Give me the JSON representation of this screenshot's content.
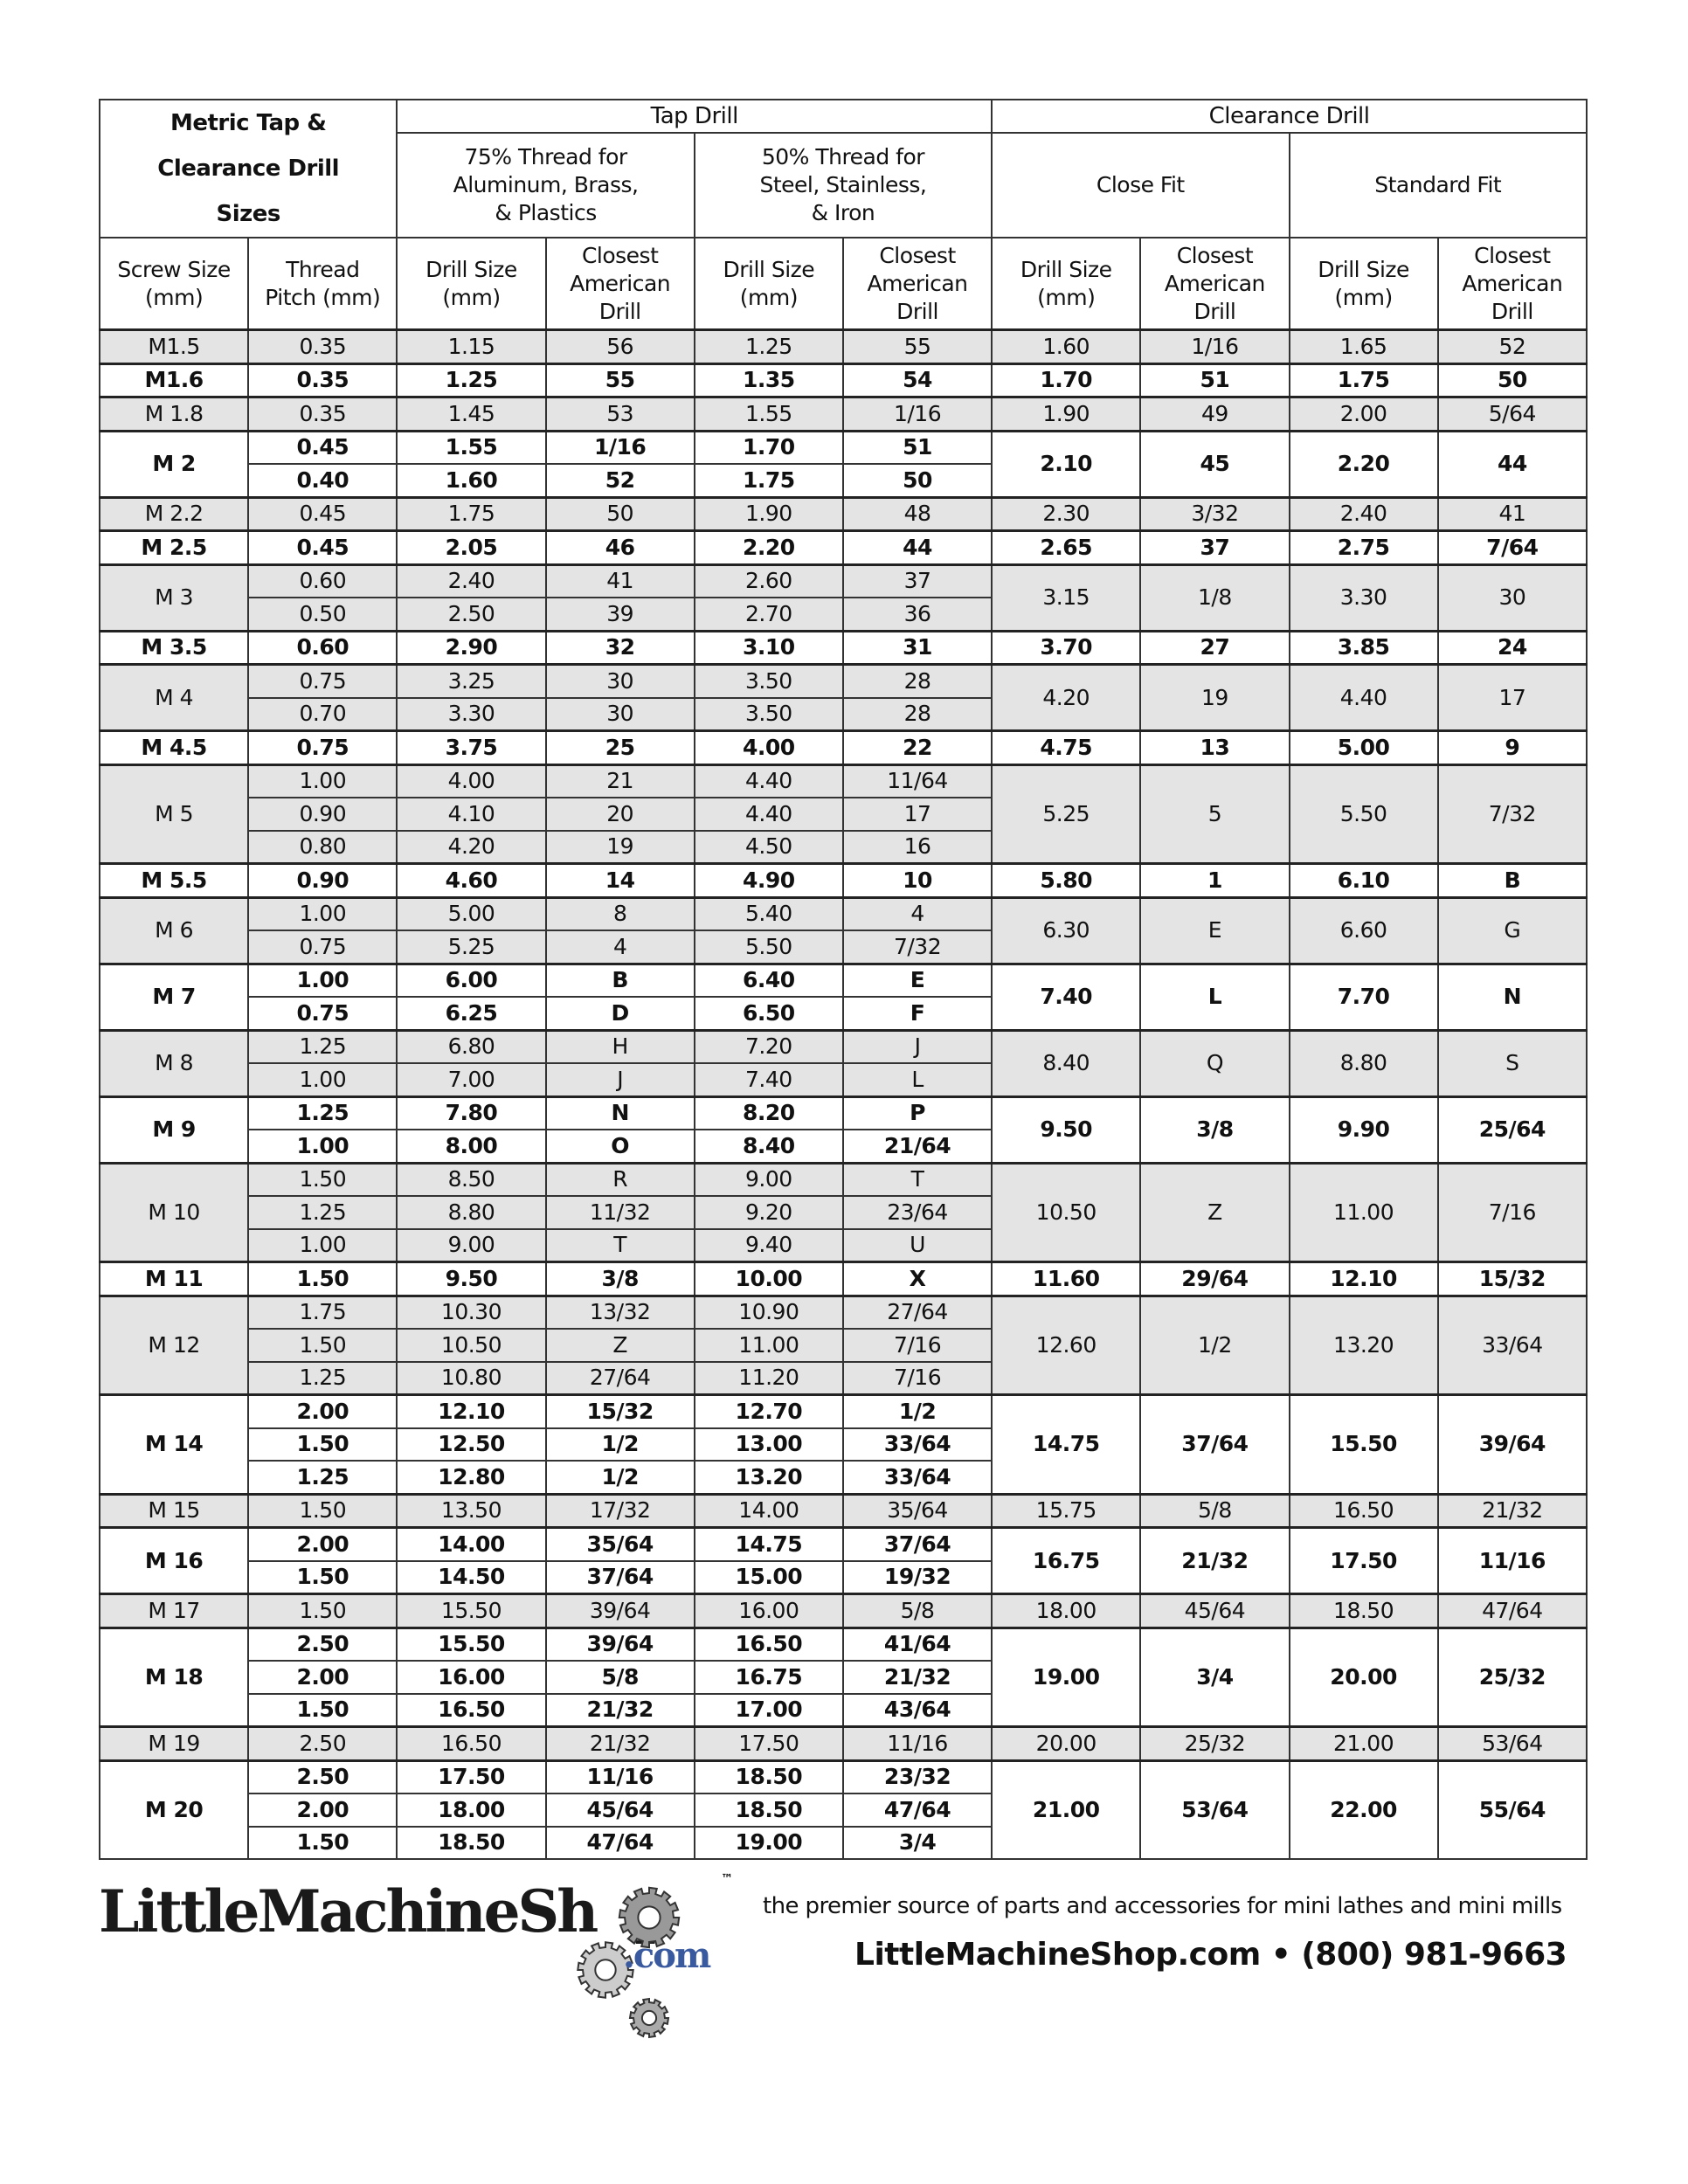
{
  "header": {
    "title_lines": [
      "Metric Tap &",
      "Clearance Drill",
      "Sizes"
    ],
    "tap_drill": "Tap Drill",
    "clearance_drill": "Clearance Drill",
    "thread75_lines": [
      "75% Thread for",
      "Aluminum, Brass,",
      "& Plastics"
    ],
    "thread50_lines": [
      "50% Thread for",
      "Steel, Stainless,",
      "& Iron"
    ],
    "close_fit": "Close Fit",
    "standard_fit": "Standard Fit",
    "columns": [
      [
        "Screw Size",
        "(mm)"
      ],
      [
        "Thread",
        "Pitch (mm)"
      ],
      [
        "Drill Size",
        "(mm)"
      ],
      [
        "Closest",
        "American",
        "Drill"
      ],
      [
        "Drill Size",
        "(mm)"
      ],
      [
        "Closest",
        "American",
        "Drill"
      ],
      [
        "Drill Size",
        "(mm)"
      ],
      [
        "Closest",
        "American",
        "Drill"
      ],
      [
        "Drill Size",
        "(mm)"
      ],
      [
        "Closest",
        "American",
        "Drill"
      ]
    ]
  },
  "colors": {
    "shade": "#e4e4e4",
    "border": "#333333",
    "com_blue": "#3a5aa0"
  },
  "groups": [
    {
      "size": "M1.5",
      "shaded": true,
      "rows": [
        [
          "0.35",
          "1.15",
          "56",
          "1.25",
          "55"
        ]
      ],
      "close": [
        "1.60",
        "1/16"
      ],
      "standard": [
        "1.65",
        "52"
      ]
    },
    {
      "size": "M1.6",
      "shaded": false,
      "rows": [
        [
          "0.35",
          "1.25",
          "55",
          "1.35",
          "54"
        ]
      ],
      "close": [
        "1.70",
        "51"
      ],
      "standard": [
        "1.75",
        "50"
      ]
    },
    {
      "size": "M 1.8",
      "shaded": true,
      "rows": [
        [
          "0.35",
          "1.45",
          "53",
          "1.55",
          "1/16"
        ]
      ],
      "close": [
        "1.90",
        "49"
      ],
      "standard": [
        "2.00",
        "5/64"
      ]
    },
    {
      "size": "M 2",
      "shaded": false,
      "rows": [
        [
          "0.45",
          "1.55",
          "1/16",
          "1.70",
          "51"
        ],
        [
          "0.40",
          "1.60",
          "52",
          "1.75",
          "50"
        ]
      ],
      "close": [
        "2.10",
        "45"
      ],
      "standard": [
        "2.20",
        "44"
      ]
    },
    {
      "size": "M 2.2",
      "shaded": true,
      "rows": [
        [
          "0.45",
          "1.75",
          "50",
          "1.90",
          "48"
        ]
      ],
      "close": [
        "2.30",
        "3/32"
      ],
      "standard": [
        "2.40",
        "41"
      ]
    },
    {
      "size": "M 2.5",
      "shaded": false,
      "rows": [
        [
          "0.45",
          "2.05",
          "46",
          "2.20",
          "44"
        ]
      ],
      "close": [
        "2.65",
        "37"
      ],
      "standard": [
        "2.75",
        "7/64"
      ]
    },
    {
      "size": "M 3",
      "shaded": true,
      "rows": [
        [
          "0.60",
          "2.40",
          "41",
          "2.60",
          "37"
        ],
        [
          "0.50",
          "2.50",
          "39",
          "2.70",
          "36"
        ]
      ],
      "close": [
        "3.15",
        "1/8"
      ],
      "standard": [
        "3.30",
        "30"
      ]
    },
    {
      "size": "M 3.5",
      "shaded": false,
      "rows": [
        [
          "0.60",
          "2.90",
          "32",
          "3.10",
          "31"
        ]
      ],
      "close": [
        "3.70",
        "27"
      ],
      "standard": [
        "3.85",
        "24"
      ]
    },
    {
      "size": "M 4",
      "shaded": true,
      "rows": [
        [
          "0.75",
          "3.25",
          "30",
          "3.50",
          "28"
        ],
        [
          "0.70",
          "3.30",
          "30",
          "3.50",
          "28"
        ]
      ],
      "close": [
        "4.20",
        "19"
      ],
      "standard": [
        "4.40",
        "17"
      ]
    },
    {
      "size": "M 4.5",
      "shaded": false,
      "rows": [
        [
          "0.75",
          "3.75",
          "25",
          "4.00",
          "22"
        ]
      ],
      "close": [
        "4.75",
        "13"
      ],
      "standard": [
        "5.00",
        "9"
      ]
    },
    {
      "size": "M 5",
      "shaded": true,
      "rows": [
        [
          "1.00",
          "4.00",
          "21",
          "4.40",
          "11/64"
        ],
        [
          "0.90",
          "4.10",
          "20",
          "4.40",
          "17"
        ],
        [
          "0.80",
          "4.20",
          "19",
          "4.50",
          "16"
        ]
      ],
      "close": [
        "5.25",
        "5"
      ],
      "standard": [
        "5.50",
        "7/32"
      ]
    },
    {
      "size": "M 5.5",
      "shaded": false,
      "rows": [
        [
          "0.90",
          "4.60",
          "14",
          "4.90",
          "10"
        ]
      ],
      "close": [
        "5.80",
        "1"
      ],
      "standard": [
        "6.10",
        "B"
      ]
    },
    {
      "size": "M 6",
      "shaded": true,
      "rows": [
        [
          "1.00",
          "5.00",
          "8",
          "5.40",
          "4"
        ],
        [
          "0.75",
          "5.25",
          "4",
          "5.50",
          "7/32"
        ]
      ],
      "close": [
        "6.30",
        "E"
      ],
      "standard": [
        "6.60",
        "G"
      ]
    },
    {
      "size": "M 7",
      "shaded": false,
      "rows": [
        [
          "1.00",
          "6.00",
          "B",
          "6.40",
          "E"
        ],
        [
          "0.75",
          "6.25",
          "D",
          "6.50",
          "F"
        ]
      ],
      "close": [
        "7.40",
        "L"
      ],
      "standard": [
        "7.70",
        "N"
      ]
    },
    {
      "size": "M 8",
      "shaded": true,
      "rows": [
        [
          "1.25",
          "6.80",
          "H",
          "7.20",
          "J"
        ],
        [
          "1.00",
          "7.00",
          "J",
          "7.40",
          "L"
        ]
      ],
      "close": [
        "8.40",
        "Q"
      ],
      "standard": [
        "8.80",
        "S"
      ]
    },
    {
      "size": "M 9",
      "shaded": false,
      "rows": [
        [
          "1.25",
          "7.80",
          "N",
          "8.20",
          "P"
        ],
        [
          "1.00",
          "8.00",
          "O",
          "8.40",
          "21/64"
        ]
      ],
      "close": [
        "9.50",
        "3/8"
      ],
      "standard": [
        "9.90",
        "25/64"
      ]
    },
    {
      "size": "M 10",
      "shaded": true,
      "rows": [
        [
          "1.50",
          "8.50",
          "R",
          "9.00",
          "T"
        ],
        [
          "1.25",
          "8.80",
          "11/32",
          "9.20",
          "23/64"
        ],
        [
          "1.00",
          "9.00",
          "T",
          "9.40",
          "U"
        ]
      ],
      "close": [
        "10.50",
        "Z"
      ],
      "standard": [
        "11.00",
        "7/16"
      ]
    },
    {
      "size": "M 11",
      "shaded": false,
      "rows": [
        [
          "1.50",
          "9.50",
          "3/8",
          "10.00",
          "X"
        ]
      ],
      "close": [
        "11.60",
        "29/64"
      ],
      "standard": [
        "12.10",
        "15/32"
      ]
    },
    {
      "size": "M 12",
      "shaded": true,
      "rows": [
        [
          "1.75",
          "10.30",
          "13/32",
          "10.90",
          "27/64"
        ],
        [
          "1.50",
          "10.50",
          "Z",
          "11.00",
          "7/16"
        ],
        [
          "1.25",
          "10.80",
          "27/64",
          "11.20",
          "7/16"
        ]
      ],
      "close": [
        "12.60",
        "1/2"
      ],
      "standard": [
        "13.20",
        "33/64"
      ]
    },
    {
      "size": "M 14",
      "shaded": false,
      "rows": [
        [
          "2.00",
          "12.10",
          "15/32",
          "12.70",
          "1/2"
        ],
        [
          "1.50",
          "12.50",
          "1/2",
          "13.00",
          "33/64"
        ],
        [
          "1.25",
          "12.80",
          "1/2",
          "13.20",
          "33/64"
        ]
      ],
      "close": [
        "14.75",
        "37/64"
      ],
      "standard": [
        "15.50",
        "39/64"
      ]
    },
    {
      "size": "M 15",
      "shaded": true,
      "rows": [
        [
          "1.50",
          "13.50",
          "17/32",
          "14.00",
          "35/64"
        ]
      ],
      "close": [
        "15.75",
        "5/8"
      ],
      "standard": [
        "16.50",
        "21/32"
      ]
    },
    {
      "size": "M 16",
      "shaded": false,
      "rows": [
        [
          "2.00",
          "14.00",
          "35/64",
          "14.75",
          "37/64"
        ],
        [
          "1.50",
          "14.50",
          "37/64",
          "15.00",
          "19/32"
        ]
      ],
      "close": [
        "16.75",
        "21/32"
      ],
      "standard": [
        "17.50",
        "11/16"
      ]
    },
    {
      "size": "M 17",
      "shaded": true,
      "rows": [
        [
          "1.50",
          "15.50",
          "39/64",
          "16.00",
          "5/8"
        ]
      ],
      "close": [
        "18.00",
        "45/64"
      ],
      "standard": [
        "18.50",
        "47/64"
      ]
    },
    {
      "size": "M 18",
      "shaded": false,
      "rows": [
        [
          "2.50",
          "15.50",
          "39/64",
          "16.50",
          "41/64"
        ],
        [
          "2.00",
          "16.00",
          "5/8",
          "16.75",
          "21/32"
        ],
        [
          "1.50",
          "16.50",
          "21/32",
          "17.00",
          "43/64"
        ]
      ],
      "close": [
        "19.00",
        "3/4"
      ],
      "standard": [
        "20.00",
        "25/32"
      ]
    },
    {
      "size": "M 19",
      "shaded": true,
      "rows": [
        [
          "2.50",
          "16.50",
          "21/32",
          "17.50",
          "11/16"
        ]
      ],
      "close": [
        "20.00",
        "25/32"
      ],
      "standard": [
        "21.00",
        "53/64"
      ]
    },
    {
      "size": "M 20",
      "shaded": false,
      "rows": [
        [
          "2.50",
          "17.50",
          "11/16",
          "18.50",
          "23/32"
        ],
        [
          "2.00",
          "18.00",
          "45/64",
          "18.50",
          "47/64"
        ],
        [
          "1.50",
          "18.50",
          "47/64",
          "19.00",
          "3/4"
        ]
      ],
      "close": [
        "21.00",
        "53/64"
      ],
      "standard": [
        "22.00",
        "55/64"
      ]
    }
  ],
  "footer": {
    "logo_text": "LittleMachineShop",
    "logo_com": ".com",
    "logo_tm": "™",
    "tagline": "the premier source of parts and accessories for mini lathes and mini mills",
    "contact": "LittleMachineShop.com • (800) 981-9663",
    "icons": [
      "gear-icon"
    ]
  }
}
